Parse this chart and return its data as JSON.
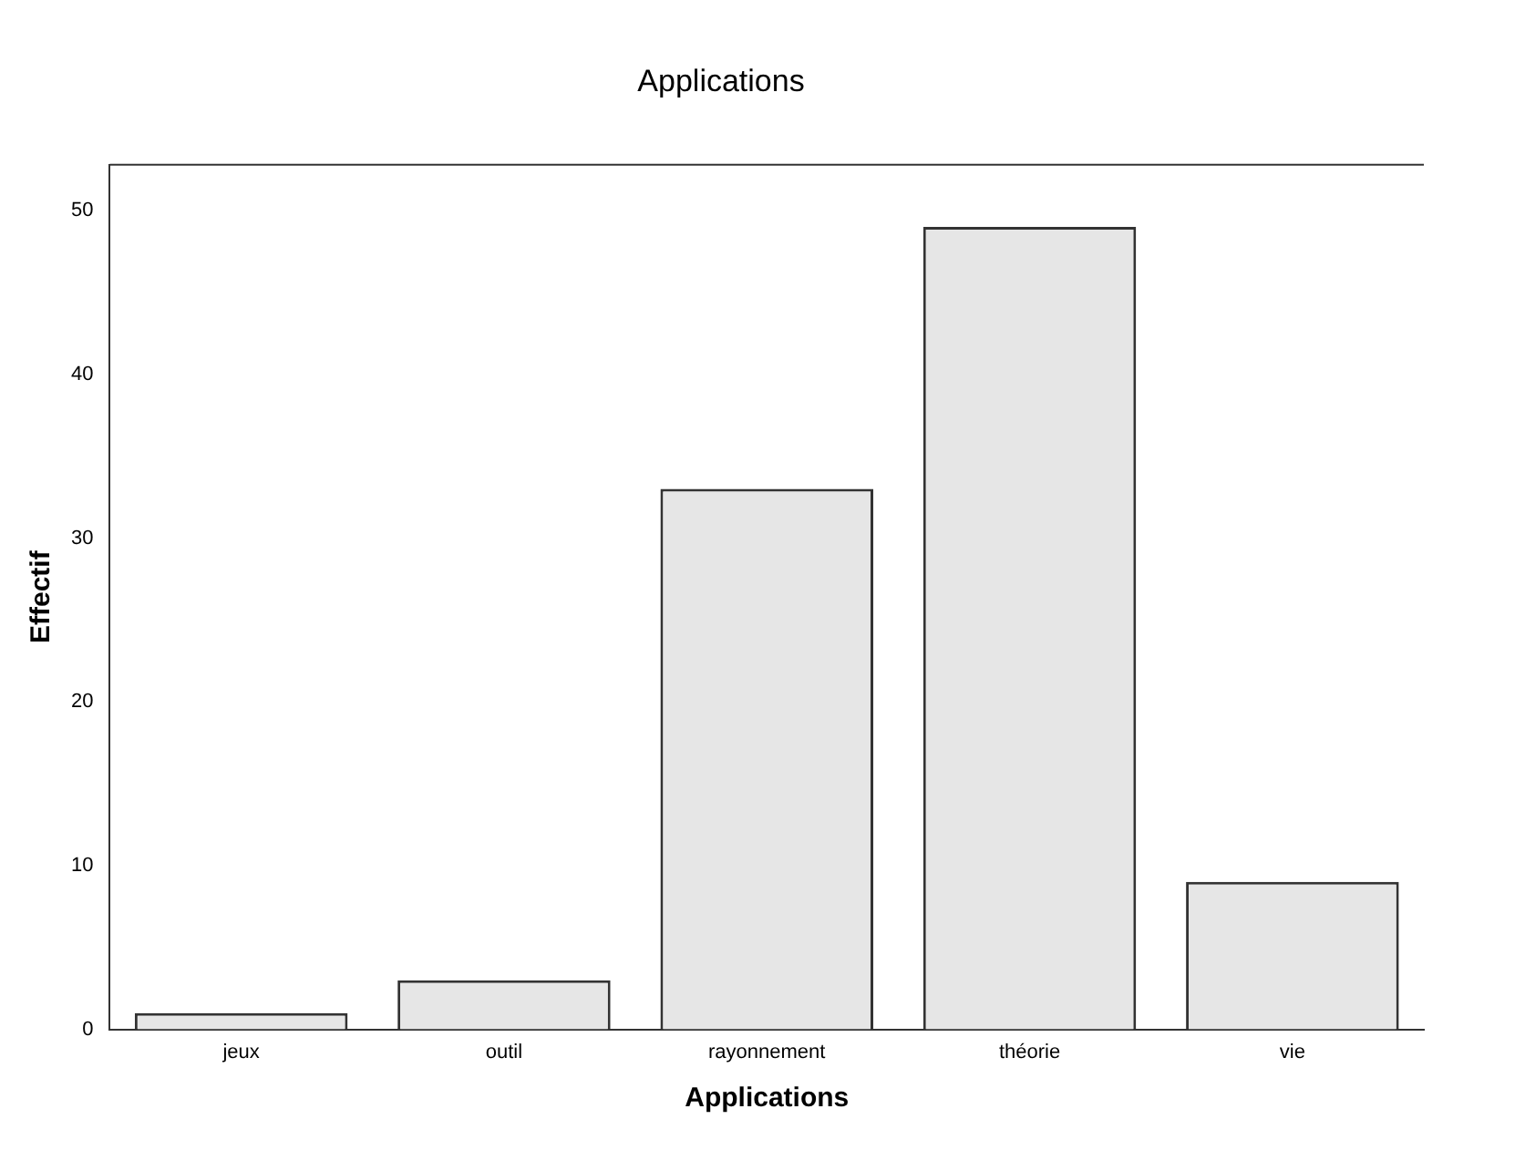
{
  "chart_data": {
    "type": "bar",
    "title": "Applications",
    "xlabel": "Applications",
    "ylabel": "Effectif",
    "categories": [
      "jeux",
      "outil",
      "rayonnement",
      "théorie",
      "vie"
    ],
    "values": [
      1,
      3,
      33,
      49,
      9
    ],
    "color": "#e6e6e6",
    "ylim": [
      0,
      52.8
    ],
    "yticks": [
      0,
      10,
      20,
      30,
      40,
      50
    ],
    "grid": false,
    "legend": false
  }
}
